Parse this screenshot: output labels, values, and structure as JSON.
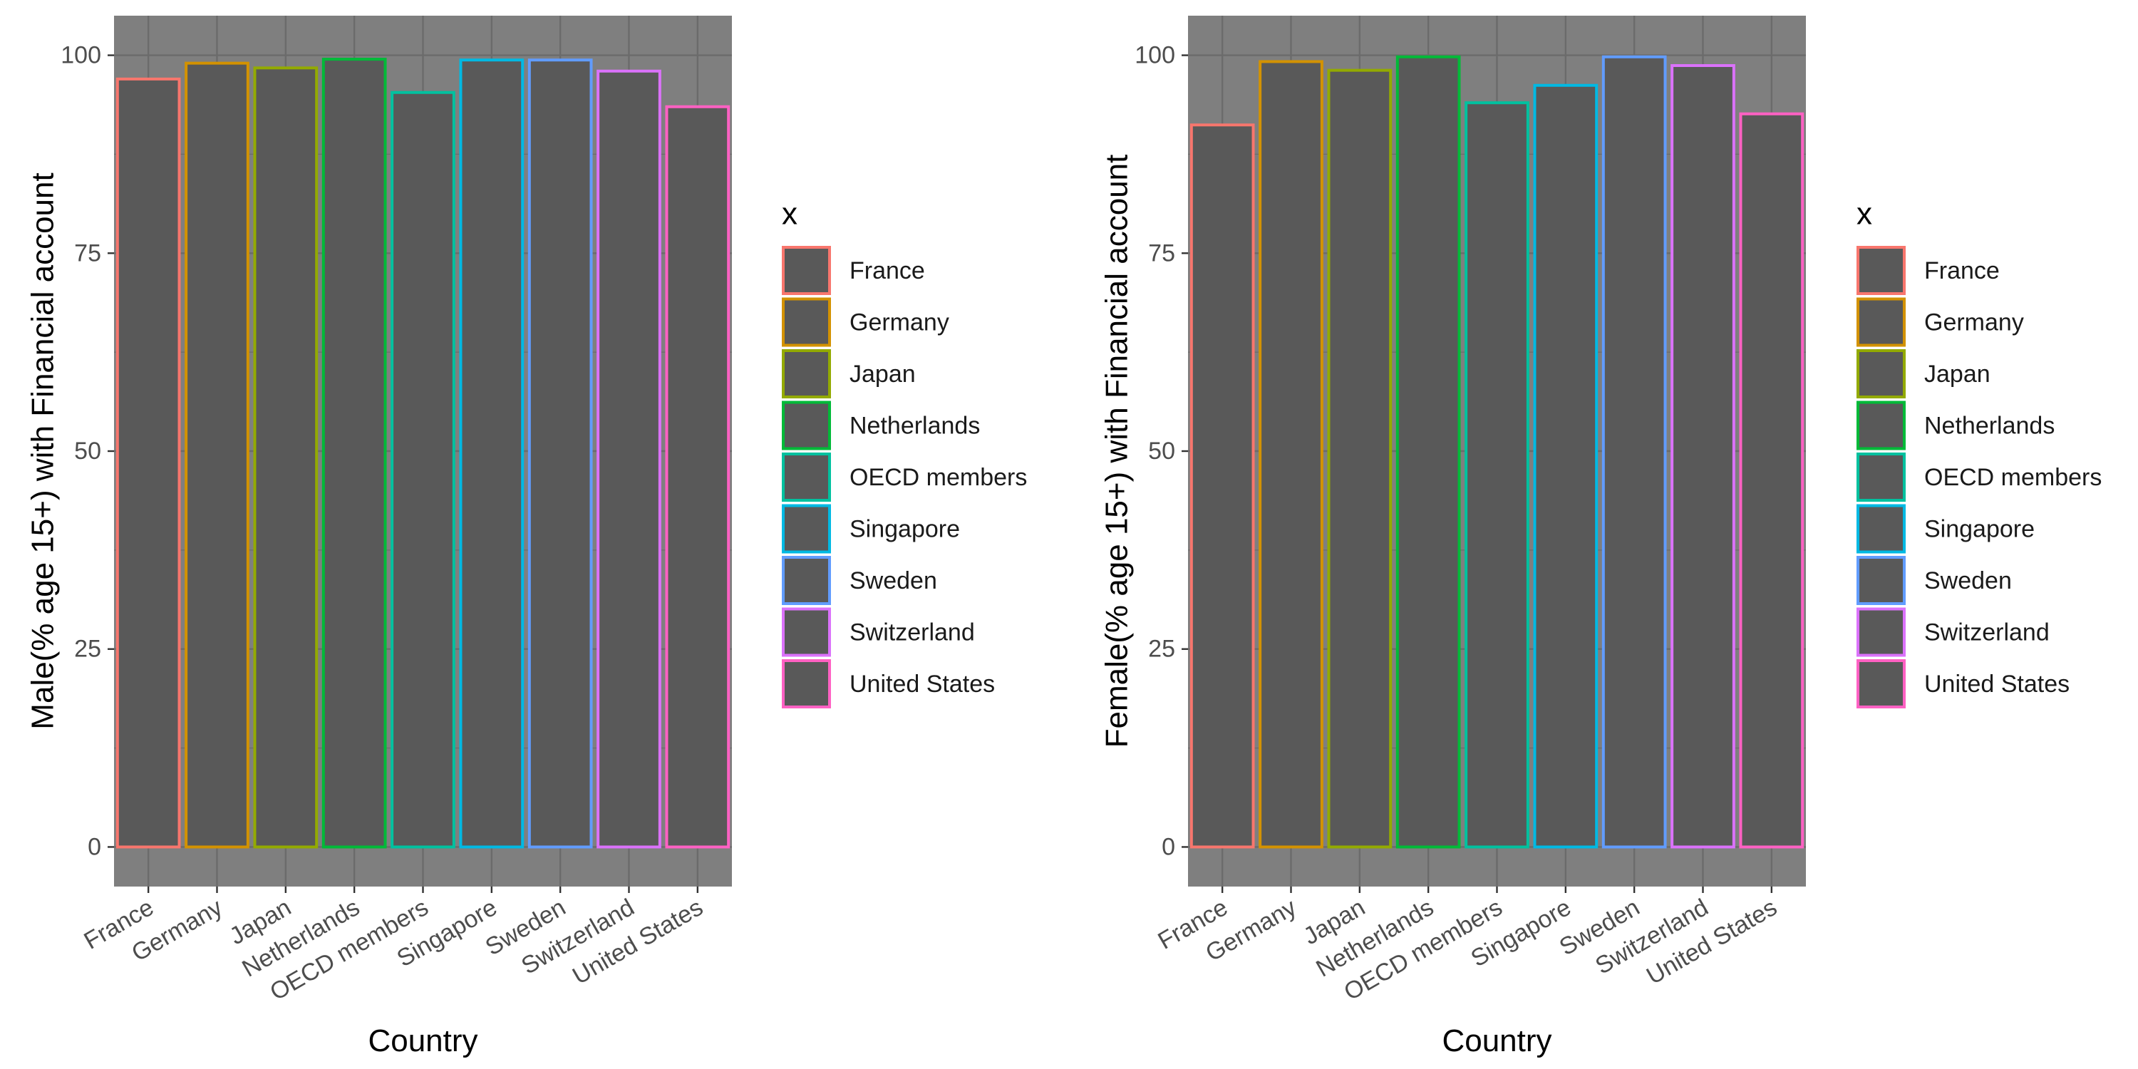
{
  "chart_data": [
    {
      "type": "bar",
      "title": "",
      "xlabel": "Country",
      "ylabel": "Male(% age 15+) with Financial account",
      "categories": [
        "France",
        "Germany",
        "Japan",
        "Netherlands",
        "OECD members",
        "Singapore",
        "Sweden",
        "Switzerland",
        "United States"
      ],
      "values": [
        97.0,
        99.0,
        98.4,
        99.5,
        95.3,
        99.4,
        99.4,
        98.0,
        93.5
      ],
      "ylim": [
        -5,
        105
      ],
      "yticks": [
        0,
        25,
        50,
        75,
        100
      ],
      "legend_title": "x",
      "legend_position": "right",
      "grid": true
    },
    {
      "type": "bar",
      "title": "",
      "xlabel": "Country",
      "ylabel": "Female(% age 15+) with Financial account",
      "categories": [
        "France",
        "Germany",
        "Japan",
        "Netherlands",
        "OECD members",
        "Singapore",
        "Sweden",
        "Switzerland",
        "United States"
      ],
      "values": [
        91.2,
        99.2,
        98.1,
        99.8,
        94.0,
        96.2,
        99.8,
        98.7,
        92.6
      ],
      "ylim": [
        -5,
        105
      ],
      "yticks": [
        0,
        25,
        50,
        75,
        100
      ],
      "legend_title": "x",
      "legend_position": "right",
      "grid": true
    }
  ],
  "series_colors": {
    "France": "#F8766D",
    "Germany": "#D39200",
    "Japan": "#93AA00",
    "Netherlands": "#00BA38",
    "OECD members": "#00C19F",
    "Singapore": "#00B9E3",
    "Sweden": "#619CFF",
    "Switzerland": "#DB72FB",
    "United States": "#FF61C3"
  },
  "panel_background": "#7F7F7F",
  "bar_fill": "#595959",
  "grid_color": "#6B6B6B"
}
